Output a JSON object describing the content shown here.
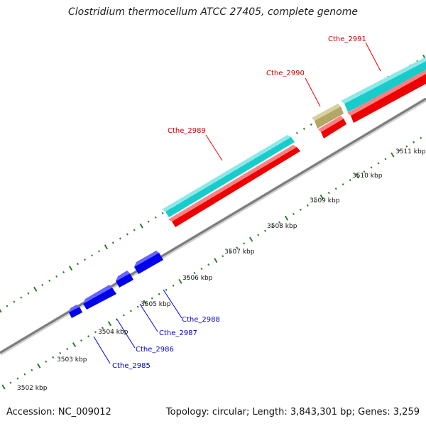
{
  "title": "Clostridium thermocellum ATCC 27405, complete genome",
  "footer": {
    "accession": "Accession: NC_009012",
    "summary": "Topology: circular; Length: 3,843,301 bp; Genes: 3,259"
  },
  "colors": {
    "forward_gene": "#ff0000",
    "forward_gene_label": "#cc0000",
    "reverse_gene": "#0000ff",
    "reverse_gene_label": "#0000cc",
    "cds_cyan": "#19cccc",
    "cds_olive": "#b3a666",
    "backbone": "#8a8a8a",
    "tick": "#2e7d2e"
  },
  "ruler_labels": [
    "3502 kbp",
    "3503 kbp",
    "3504 kbp",
    "3505 kbp",
    "3506 kbp",
    "3507 kbp",
    "3508 kbp",
    "3509 kbp",
    "3510 kbp",
    "3511 kbp"
  ],
  "genes_forward": [
    {
      "name": "Cthe_2989"
    },
    {
      "name": "Cthe_2990"
    },
    {
      "name": "Cthe_2991"
    }
  ],
  "genes_reverse": [
    {
      "name": "Cthe_2985"
    },
    {
      "name": "Cthe_2986"
    },
    {
      "name": "Cthe_2987"
    },
    {
      "name": "Cthe_2988"
    }
  ]
}
